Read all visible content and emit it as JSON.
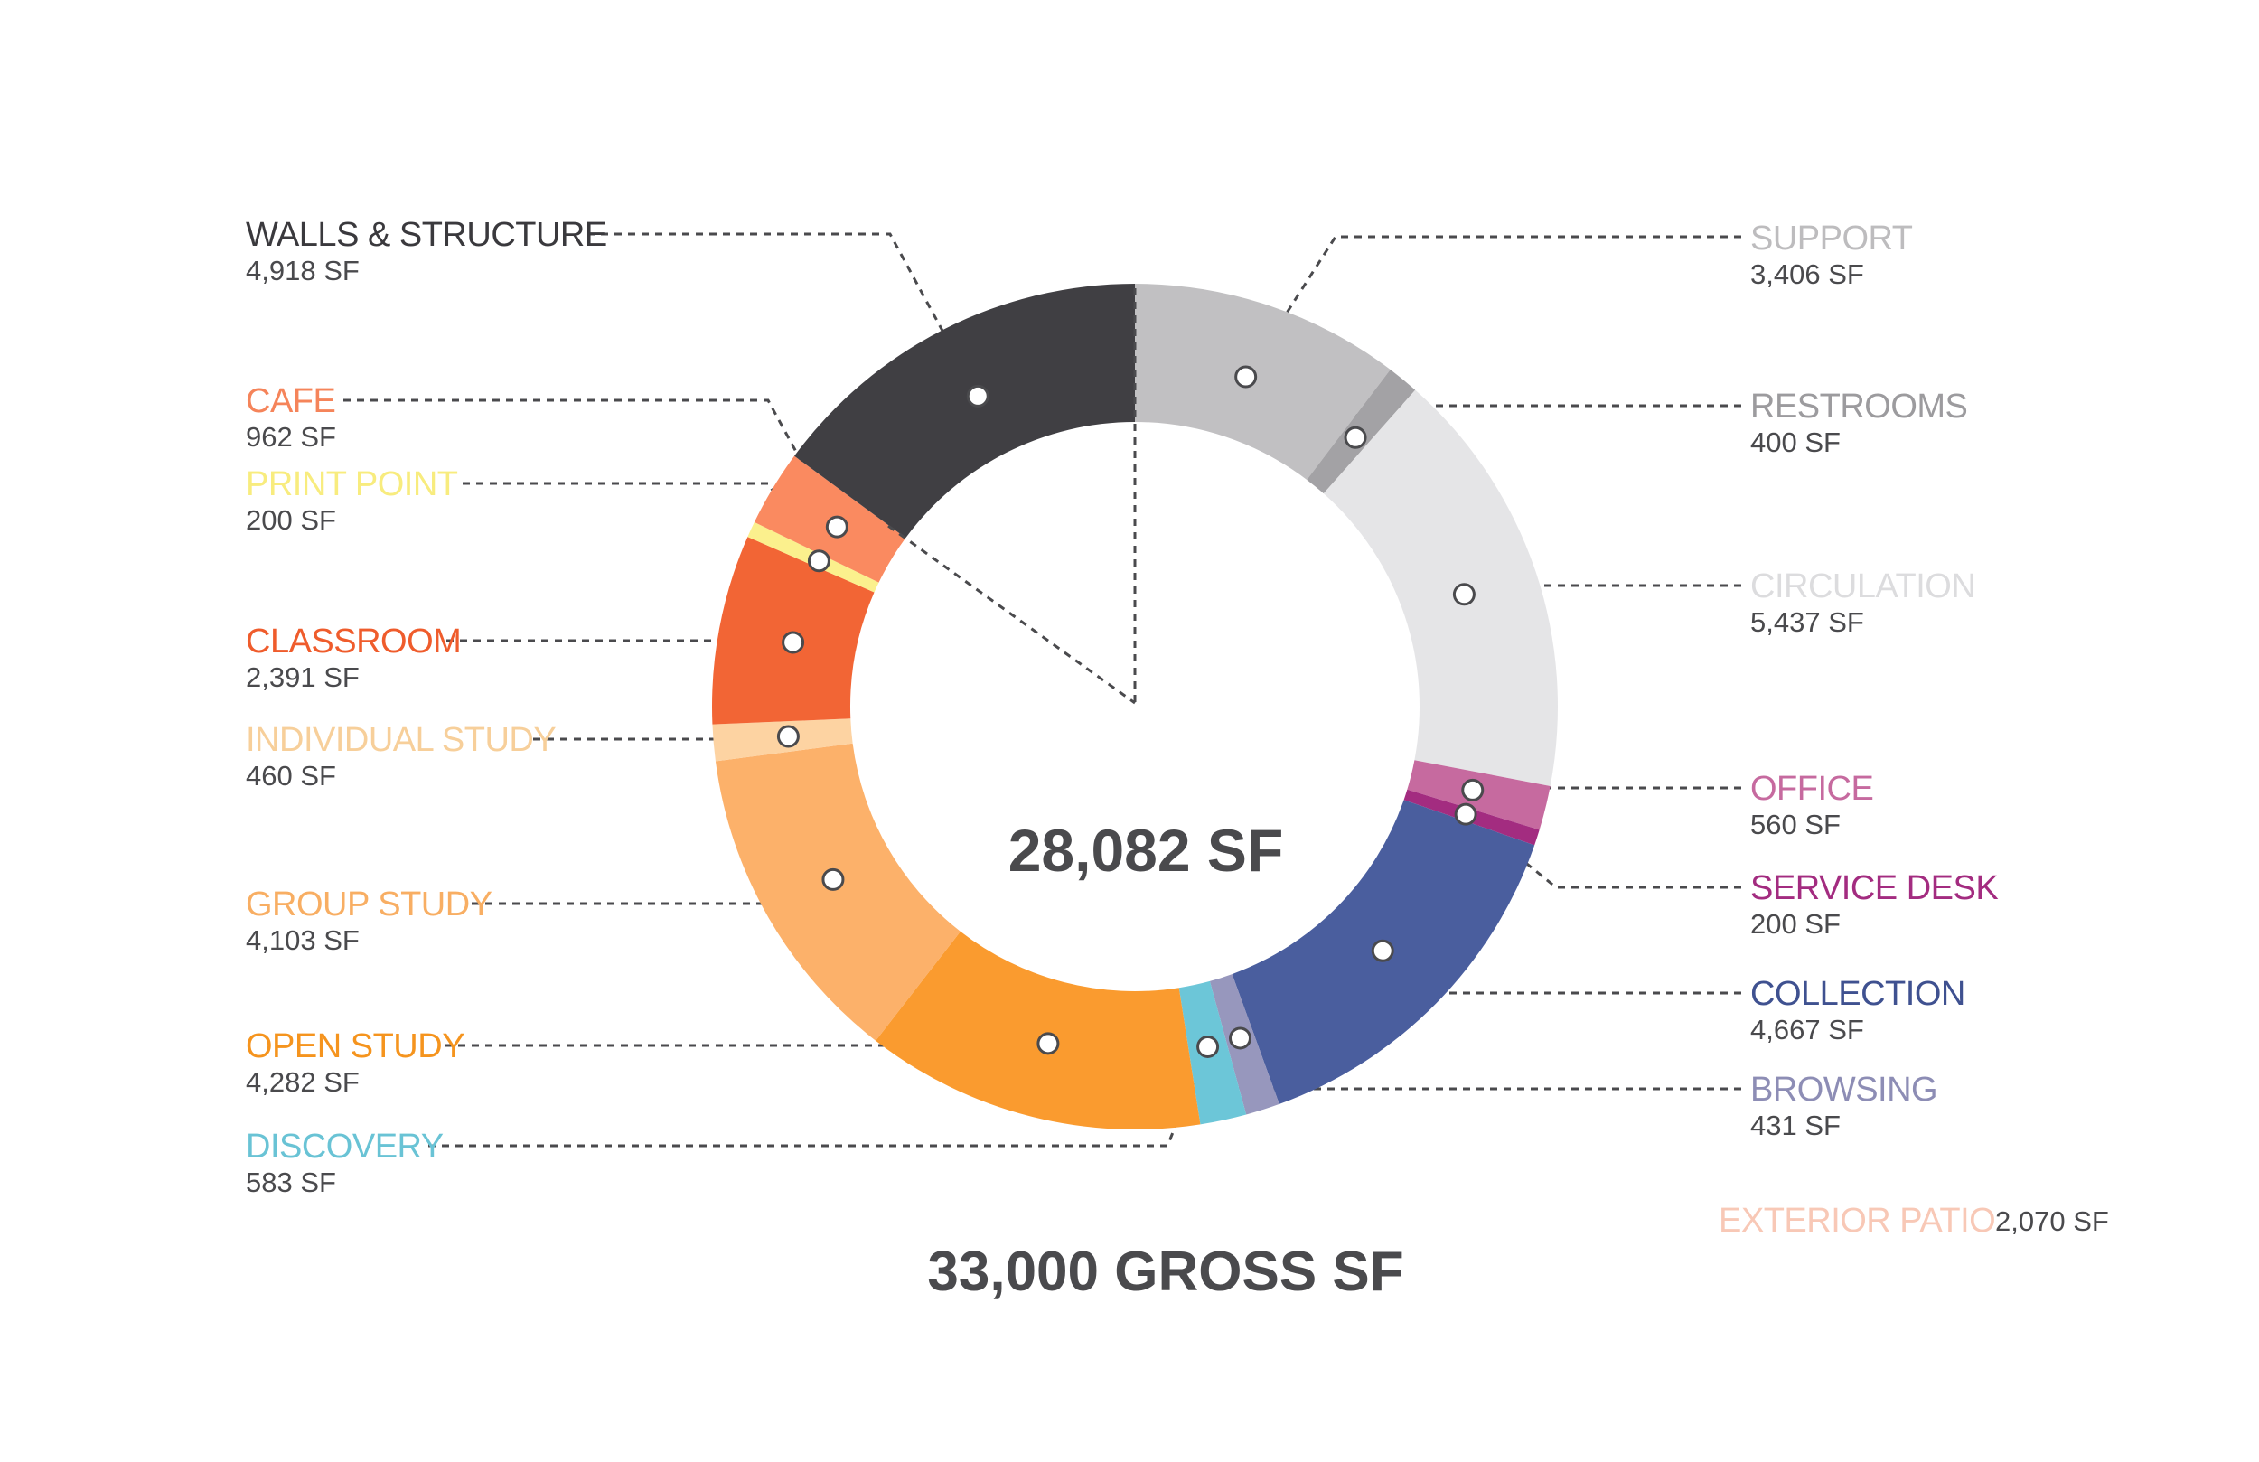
{
  "chart_data": {
    "type": "donut",
    "center_label": "28,082 SF",
    "title": "33,000 GROSS SF",
    "series": [
      {
        "name": "SUPPORT",
        "value": 3406,
        "value_label": "3,406 SF",
        "color": "#c1c0c2",
        "label_color": "#bdbcbe",
        "side": "right"
      },
      {
        "name": "RESTROOMS",
        "value": 400,
        "value_label": "400 SF",
        "color": "#a3a2a5",
        "label_color": "#9c9b9e",
        "side": "right"
      },
      {
        "name": "CIRCULATION",
        "value": 5437,
        "value_label": "5,437 SF",
        "color": "#e5e5e7",
        "label_color": "#dcdcde",
        "side": "right"
      },
      {
        "name": "OFFICE",
        "value": 560,
        "value_label": "560 SF",
        "color": "#c66a9f",
        "label_color": "#c66a9f",
        "side": "right"
      },
      {
        "name": "SERVICE DESK",
        "value": 200,
        "value_label": "200 SF",
        "color": "#a32c80",
        "label_color": "#a32c80",
        "side": "right"
      },
      {
        "name": "COLLECTION",
        "value": 4667,
        "value_label": "4,667 SF",
        "color": "#4a5e9e",
        "label_color": "#3f5190",
        "side": "right"
      },
      {
        "name": "BROWSING",
        "value": 431,
        "value_label": "431 SF",
        "color": "#9797bd",
        "label_color": "#8d8db5",
        "side": "right"
      },
      {
        "name": "DISCOVERY",
        "value": 583,
        "value_label": "583 SF",
        "color": "#6cc6d8",
        "label_color": "#69c3d5",
        "side": "left"
      },
      {
        "name": "OPEN STUDY",
        "value": 4282,
        "value_label": "4,282 SF",
        "color": "#fa9b2f",
        "label_color": "#f5941e",
        "side": "left"
      },
      {
        "name": "GROUP STUDY",
        "value": 4103,
        "value_label": "4,103 SF",
        "color": "#fcb16a",
        "label_color": "#f8ae63",
        "side": "left"
      },
      {
        "name": "INDIVIDUAL STUDY",
        "value": 460,
        "value_label": "460 SF",
        "color": "#fdd3a2",
        "label_color": "#f7cf9a",
        "side": "left"
      },
      {
        "name": "CLASSROOM",
        "value": 2391,
        "value_label": "2,391 SF",
        "color": "#f26535",
        "label_color": "#ef5c2c",
        "side": "left"
      },
      {
        "name": "PRINT POINT",
        "value": 200,
        "value_label": "200 SF",
        "color": "#fbf08d",
        "label_color": "#f8ec7e",
        "side": "left"
      },
      {
        "name": "CAFE",
        "value": 962,
        "value_label": "962 SF",
        "color": "#fa8a60",
        "label_color": "#f5845a",
        "side": "left"
      },
      {
        "name": "WALLS & STRUCTURE",
        "value": 4918,
        "value_label": "4,918 SF",
        "color": "#403f43",
        "label_color": "#3a393d",
        "side": "left"
      }
    ],
    "extra": {
      "name": "EXTERIOR PATIO",
      "value": 2070,
      "value_label": "2,070 SF",
      "color": "#f8c8b6"
    }
  }
}
